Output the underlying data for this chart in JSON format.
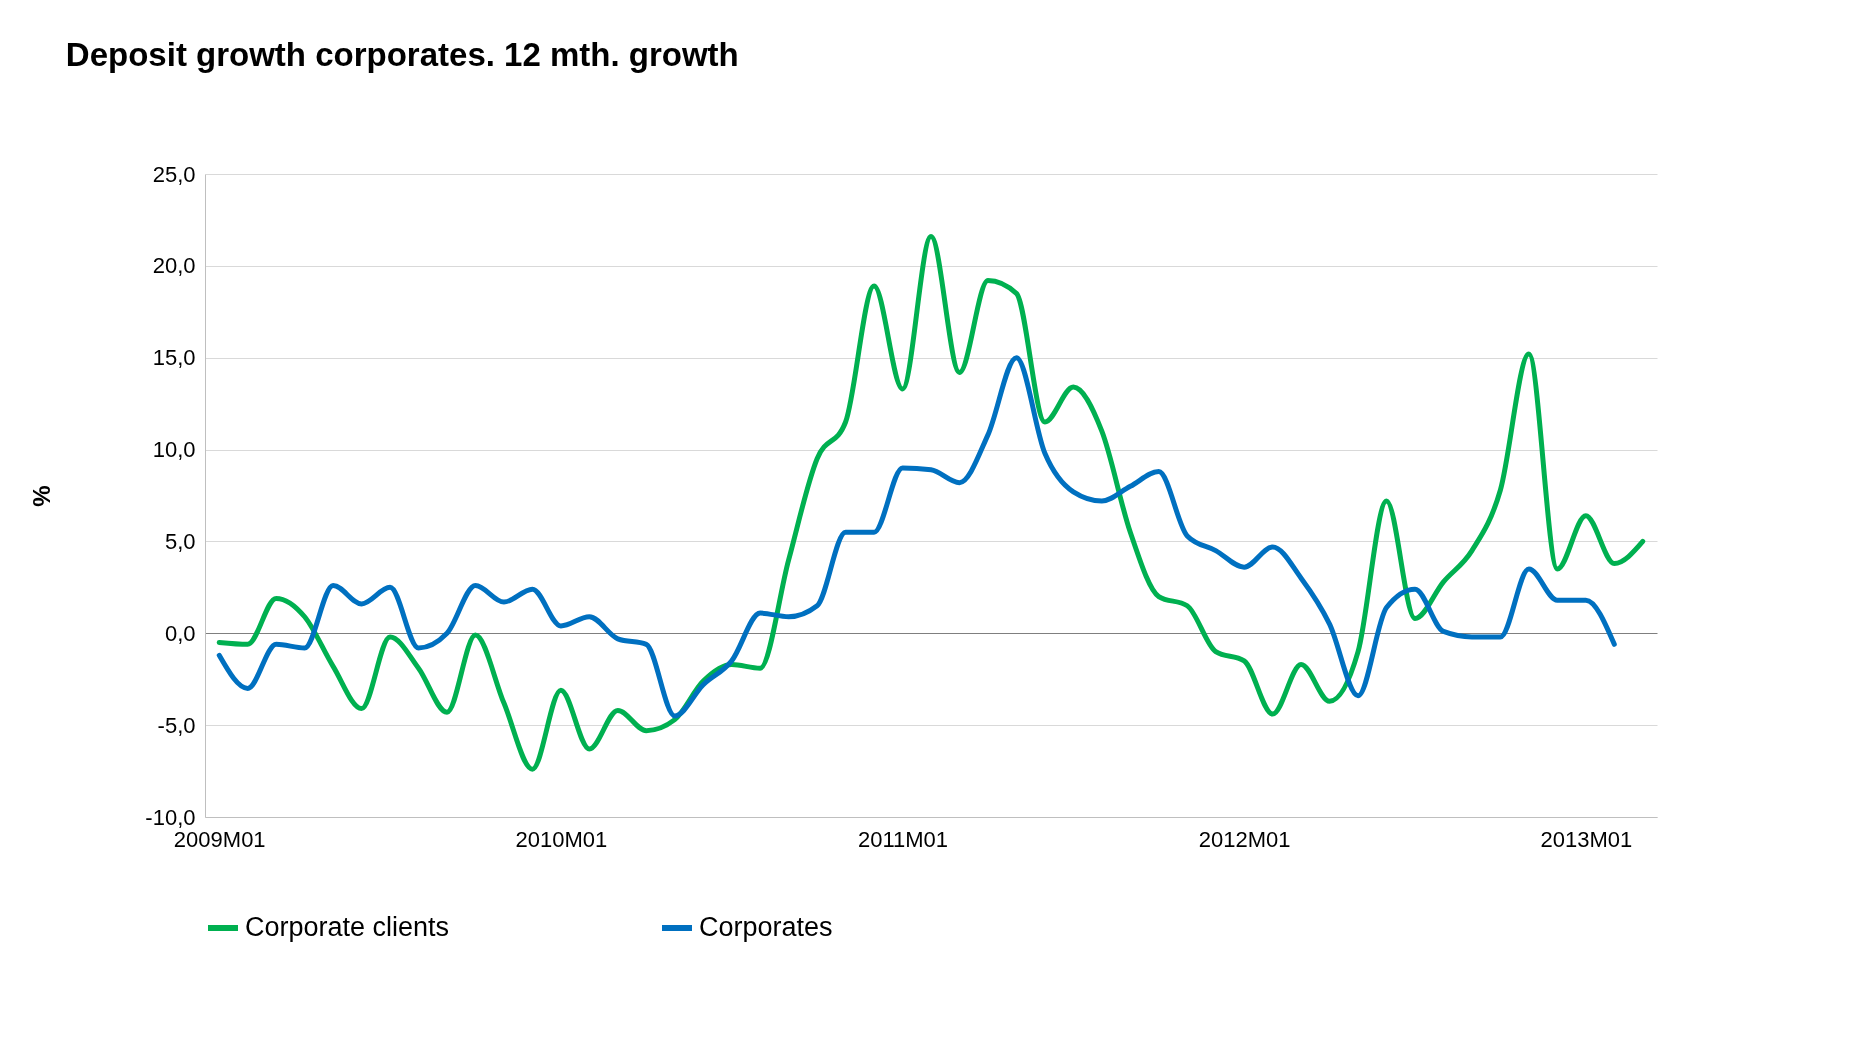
{
  "chart_data": {
    "type": "line",
    "title": "Deposit growth corporates. 12 mth. growth",
    "ylabel": "%",
    "categories": [
      "2009M01",
      null,
      null,
      null,
      null,
      null,
      null,
      null,
      null,
      null,
      null,
      null,
      "2010M01",
      null,
      null,
      null,
      null,
      null,
      null,
      null,
      null,
      null,
      null,
      null,
      "2011M01",
      null,
      null,
      null,
      null,
      null,
      null,
      null,
      null,
      null,
      null,
      null,
      "2012M01",
      null,
      null,
      null,
      null,
      null,
      null,
      null,
      null,
      null,
      null,
      null,
      "2013M01",
      null,
      null
    ],
    "series": [
      {
        "name": "Corporate clients",
        "color": "#00b050",
        "values": [
          -0.5,
          -0.6,
          1.9,
          0.9,
          -1.8,
          -4.1,
          -0.2,
          -1.9,
          -4.3,
          -0.1,
          -3.8,
          -7.4,
          -3.1,
          -6.3,
          -4.2,
          -5.3,
          -4.7,
          -2.6,
          -1.7,
          -1.9,
          4.0,
          9.5,
          11.5,
          18.9,
          13.3,
          21.6,
          14.2,
          19.2,
          18.5,
          11.5,
          13.4,
          11.0,
          5.5,
          2.0,
          1.5,
          -1.0,
          -1.5,
          -4.4,
          -1.7,
          -3.7,
          -1.0,
          7.2,
          0.8,
          2.8,
          4.5,
          7.8,
          15.2,
          3.5,
          6.4,
          3.8,
          5.0
        ]
      },
      {
        "name": "Corporates",
        "color": "#0070c0",
        "values": [
          -1.2,
          -3.0,
          -0.6,
          -0.8,
          2.6,
          1.6,
          2.5,
          -0.8,
          0.0,
          2.6,
          1.7,
          2.4,
          0.4,
          0.9,
          -0.3,
          -0.6,
          -4.5,
          -2.8,
          -1.5,
          1.1,
          0.9,
          1.5,
          5.5,
          5.5,
          9.0,
          8.9,
          8.2,
          10.8,
          15.0,
          9.8,
          7.7,
          7.2,
          8.0,
          8.8,
          5.3,
          4.5,
          3.6,
          4.7,
          3.0,
          0.5,
          -3.4,
          1.4,
          2.4,
          0.1,
          -0.2,
          -0.2,
          3.5,
          1.8,
          1.8,
          -0.6,
          null
        ]
      }
    ],
    "ylim": [
      -10,
      25
    ],
    "yticks": [
      {
        "value": -10,
        "label": "-10,0"
      },
      {
        "value": -5,
        "label": "-5,0"
      },
      {
        "value": 0,
        "label": "0,0"
      },
      {
        "value": 5,
        "label": "5,0"
      },
      {
        "value": 10,
        "label": "10,0"
      },
      {
        "value": 15,
        "label": "15,0"
      },
      {
        "value": 20,
        "label": "20,0"
      },
      {
        "value": 25,
        "label": "25,0"
      }
    ],
    "grid": "y",
    "legend": "bottom",
    "line_style": "solid",
    "marker": "none"
  }
}
